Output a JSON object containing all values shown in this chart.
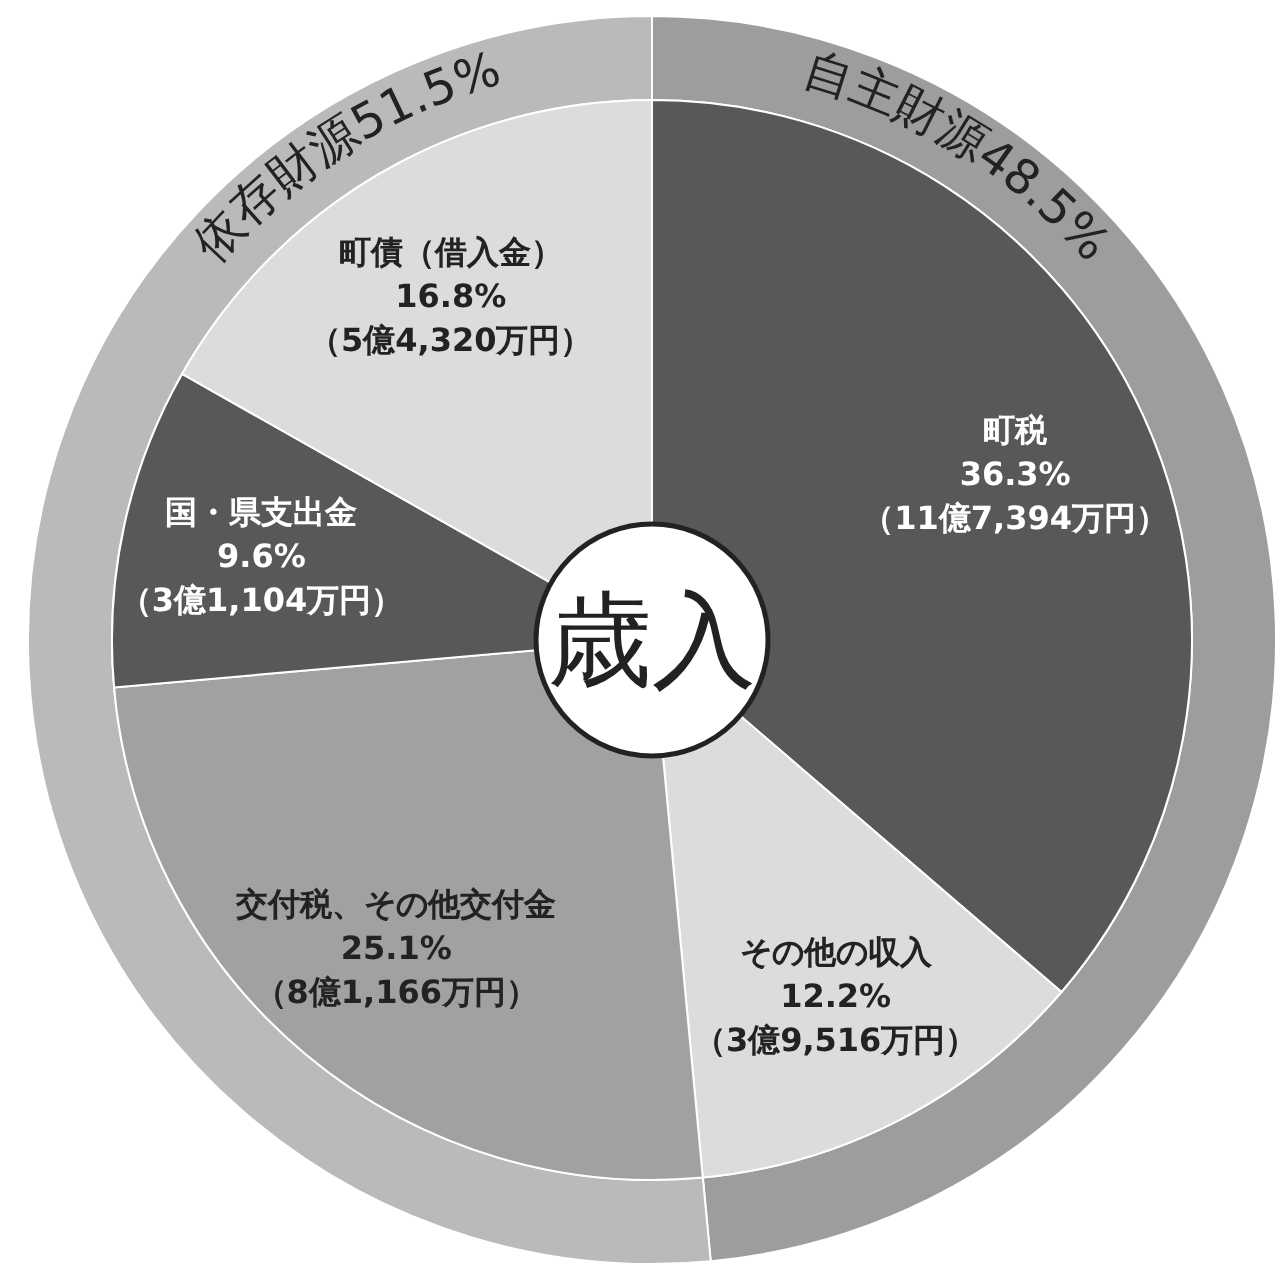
{
  "chart_data": [
    {
      "type": "donut",
      "title": "歳入",
      "categories": [
        "町税",
        "その他の収入",
        "交付税、その他交付金",
        "国・県支出金",
        "町債（借入金）"
      ],
      "values": [
        36.3,
        12.2,
        25.1,
        9.6,
        16.8
      ],
      "colors": [
        "#58585a",
        "#dcdcde",
        "#a0a1a3",
        "#58585a",
        "#dcdcde"
      ],
      "value_labels": [
        "36.3%",
        "12.2%",
        "25.1%",
        "9.6%",
        "16.8%"
      ],
      "annotations": [
        {
          "text": "（11億7,394万円）",
          "x": "町税"
        },
        {
          "text": "（3億9,516万円）",
          "x": "その他の収入"
        },
        {
          "text": "（8億1,166万円）",
          "x": "交付税、その他交付金"
        },
        {
          "text": "（3億1,104万円）",
          "x": "国・県支出金"
        },
        {
          "text": "（5億4,320万円）",
          "x": "町債（借入金）"
        }
      ]
    },
    {
      "type": "donut",
      "categories": [
        "自主財源",
        "依存財源"
      ],
      "values": [
        48.5,
        51.5
      ],
      "colors": [
        "#9c9d9f",
        "#b9babc"
      ],
      "value_labels": [
        "48.5%",
        "51.5%"
      ]
    }
  ]
}
